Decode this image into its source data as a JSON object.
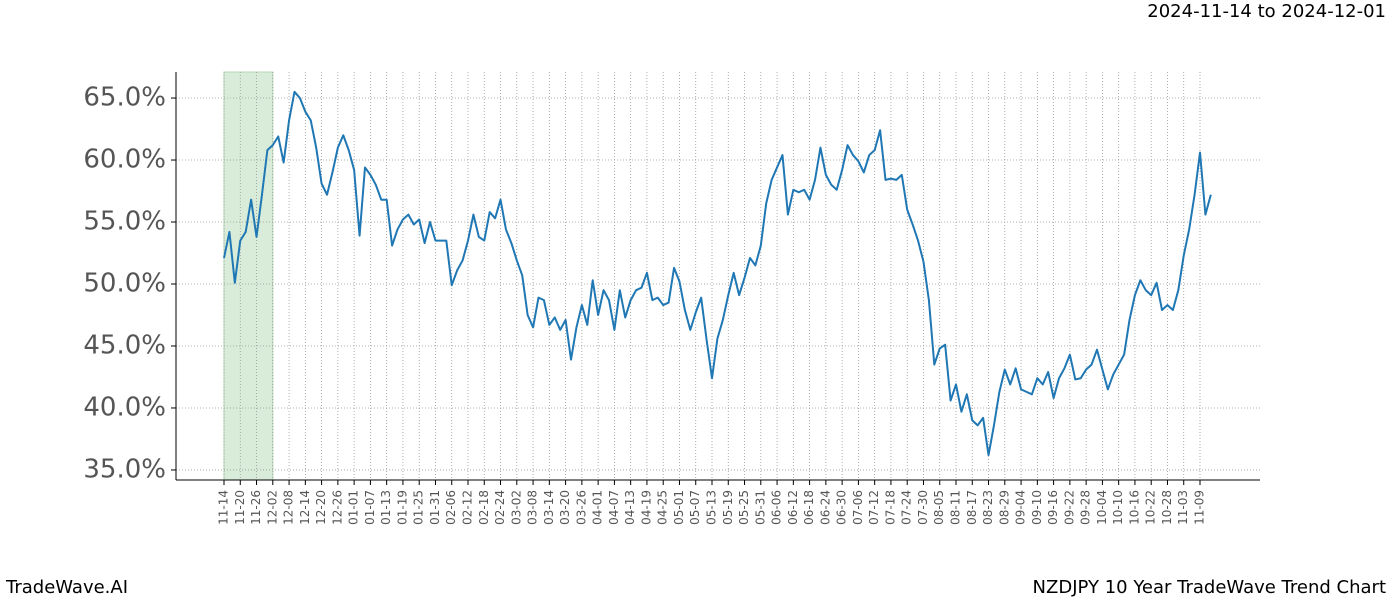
{
  "chart_data": {
    "type": "line",
    "date_range": "2024-11-14 to 2024-12-01",
    "brand": "TradeWave.AI",
    "title": "NZDJPY 10 Year TradeWave Trend Chart",
    "color": "#1f77b4",
    "highlight_color": "#d9ecd9",
    "highlight": [
      "11-14",
      "12-02"
    ],
    "grid": true,
    "ylim": [
      34.19,
      67.1
    ],
    "yticks": [
      {
        "value": 35,
        "label": "35.0%"
      },
      {
        "value": 40,
        "label": "40.0%"
      },
      {
        "value": 45,
        "label": "45.0%"
      },
      {
        "value": 50,
        "label": "50.0%"
      },
      {
        "value": 55,
        "label": "55.0%"
      },
      {
        "value": 60,
        "label": "60.0%"
      },
      {
        "value": 65,
        "label": "65.0%"
      }
    ],
    "categories": [
      "11-14",
      null,
      null,
      "11-20",
      null,
      null,
      "11-26",
      null,
      null,
      "12-02",
      null,
      null,
      "12-08",
      null,
      null,
      "12-14",
      null,
      null,
      "12-20",
      null,
      null,
      "12-26",
      null,
      null,
      "01-01",
      null,
      null,
      "01-07",
      null,
      null,
      "01-13",
      null,
      null,
      "01-19",
      null,
      null,
      "01-25",
      null,
      null,
      "01-31",
      null,
      null,
      "02-06",
      null,
      null,
      "02-12",
      null,
      null,
      "02-18",
      null,
      null,
      "02-24",
      null,
      null,
      "03-02",
      null,
      null,
      "03-08",
      null,
      null,
      "03-14",
      null,
      null,
      "03-20",
      null,
      null,
      "03-26",
      null,
      null,
      "04-01",
      null,
      null,
      "04-07",
      null,
      null,
      "04-13",
      null,
      null,
      "04-19",
      null,
      null,
      "04-25",
      null,
      null,
      "05-01",
      null,
      null,
      "05-07",
      null,
      null,
      "05-13",
      null,
      null,
      "05-19",
      null,
      null,
      "05-25",
      null,
      null,
      "05-31",
      null,
      null,
      "06-06",
      null,
      null,
      "06-12",
      null,
      null,
      "06-18",
      null,
      null,
      "06-24",
      null,
      null,
      "06-30",
      null,
      null,
      "07-06",
      null,
      null,
      "07-12",
      null,
      null,
      "07-18",
      null,
      null,
      "07-24",
      null,
      null,
      "07-30",
      null,
      null,
      "08-05",
      null,
      null,
      "08-11",
      null,
      null,
      "08-17",
      null,
      null,
      "08-23",
      null,
      null,
      "08-29",
      null,
      null,
      "09-04",
      null,
      null,
      "09-10",
      null,
      null,
      "09-16",
      null,
      null,
      "09-22",
      null,
      null,
      "09-28",
      null,
      null,
      "10-04",
      null,
      null,
      "10-10",
      null,
      null,
      "10-16",
      null,
      null,
      "10-22",
      null,
      null,
      "10-28",
      null,
      null,
      "11-03",
      null,
      null,
      "11-09",
      null,
      null
    ],
    "values": [
      52.1,
      54.2,
      50.1,
      53.5,
      54.2,
      56.8,
      53.8,
      57.2,
      60.8,
      61.2,
      61.9,
      59.8,
      63.2,
      65.5,
      65.0,
      63.9,
      63.2,
      61.0,
      58.1,
      57.2,
      59.0,
      61.0,
      62.0,
      60.8,
      59.2,
      53.9,
      59.4,
      58.8,
      58.0,
      56.8,
      56.8,
      53.1,
      54.4,
      55.2,
      55.6,
      54.8,
      55.2,
      53.3,
      55.0,
      53.5,
      53.5,
      53.5,
      49.9,
      51.1,
      51.9,
      53.5,
      55.6,
      53.8,
      53.5,
      55.8,
      55.3,
      56.8,
      54.4,
      53.3,
      51.9,
      50.7,
      47.5,
      46.5,
      48.9,
      48.7,
      46.7,
      47.3,
      46.3,
      47.1,
      43.9,
      46.5,
      48.3,
      46.7,
      50.3,
      47.5,
      49.5,
      48.7,
      46.3,
      49.5,
      47.3,
      48.7,
      49.5,
      49.7,
      50.9,
      48.7,
      48.9,
      48.3,
      48.5,
      51.3,
      50.2,
      47.9,
      46.3,
      47.7,
      48.9,
      45.5,
      42.4,
      45.6,
      47.1,
      49.1,
      50.9,
      49.1,
      50.5,
      52.1,
      51.5,
      53.1,
      56.5,
      58.4,
      59.4,
      60.4,
      55.6,
      57.6,
      57.4,
      57.6,
      56.8,
      58.4,
      61.0,
      58.8,
      58.0,
      57.6,
      59.2,
      61.2,
      60.4,
      59.9,
      59.0,
      60.4,
      60.8,
      62.4,
      58.4,
      58.5,
      58.4,
      58.8,
      56.0,
      54.8,
      53.5,
      51.8,
      48.7,
      43.5,
      44.8,
      45.1,
      40.6,
      41.9,
      39.7,
      41.1,
      39.0,
      38.6,
      39.2,
      36.2,
      38.6,
      41.3,
      43.1,
      41.9,
      43.2,
      41.5,
      41.3,
      41.1,
      42.4,
      41.9,
      42.9,
      40.8,
      42.4,
      43.2,
      44.3,
      42.3,
      42.4,
      43.1,
      43.5,
      44.7,
      43.1,
      41.5,
      42.7,
      43.5,
      44.3,
      47.1,
      49.1,
      50.3,
      49.5,
      49.1,
      50.1,
      47.9,
      48.3,
      47.9,
      49.5,
      52.3,
      54.4,
      57.2,
      60.6,
      55.6,
      57.2
    ]
  }
}
